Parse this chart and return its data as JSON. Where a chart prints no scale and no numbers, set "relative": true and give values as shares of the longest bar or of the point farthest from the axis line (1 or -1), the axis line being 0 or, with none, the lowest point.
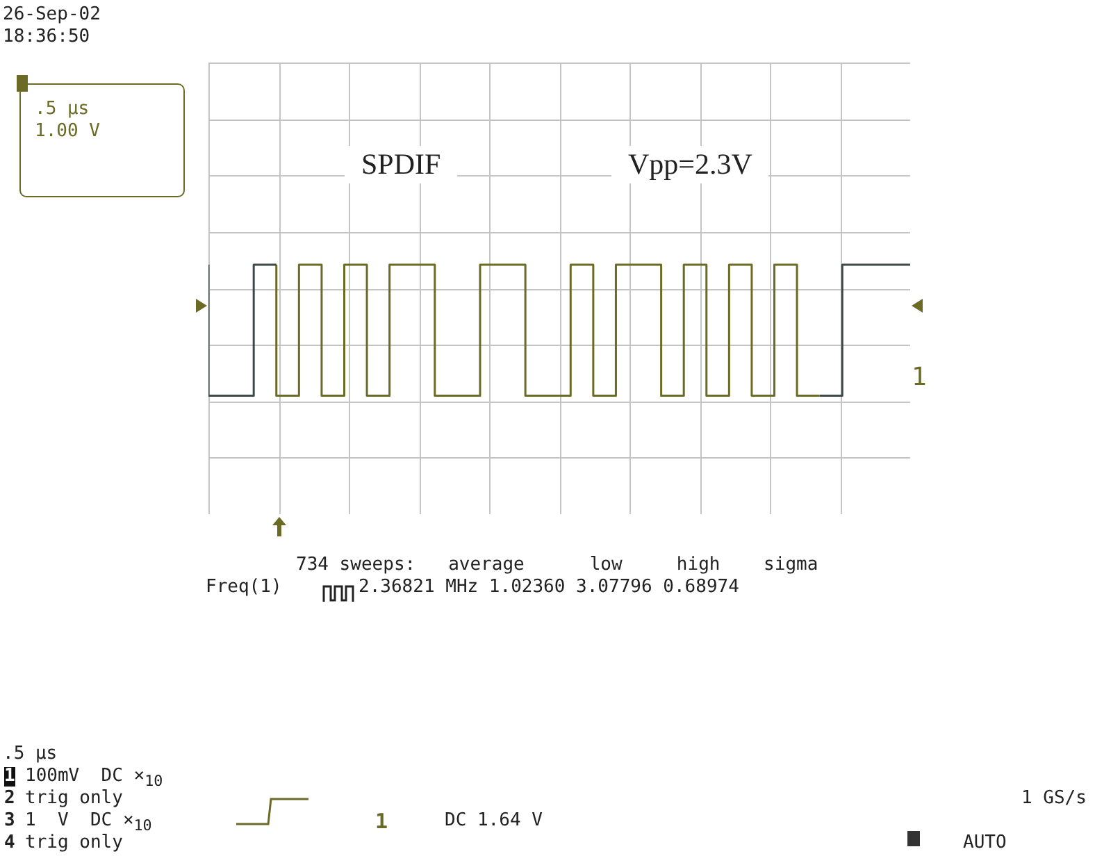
{
  "chart_data": {
    "type": "step",
    "relative": true,
    "grid": true,
    "marker": "none",
    "categories": [
      null,
      null,
      null,
      null,
      null,
      null,
      null,
      null,
      null,
      null,
      null,
      null,
      null,
      null,
      null,
      null,
      null,
      null,
      null,
      null,
      null,
      null,
      null,
      null,
      null,
      null,
      null,
      null,
      null,
      null,
      null,
      null
    ],
    "series": [
      {
        "color": "#3d4848",
        "values": [
          1,
          0,
          0,
          1,
          null,
          null,
          null,
          null,
          null,
          null,
          null,
          null,
          null,
          null,
          null,
          null,
          null,
          null,
          null,
          null,
          null,
          null,
          null,
          null,
          null,
          null,
          null,
          0,
          0,
          1,
          1,
          1
        ]
      },
      {
        "color": "#6b6b26",
        "values": [
          null,
          null,
          null,
          1,
          0,
          1,
          0,
          1,
          0,
          1,
          1,
          0,
          0,
          1,
          1,
          0,
          0,
          1,
          0,
          1,
          1,
          0,
          1,
          0,
          1,
          0,
          1,
          0,
          null,
          null,
          null,
          null
        ]
      }
    ],
    "annotations": [
      "SPDIF",
      "Vpp=2.3V",
      "26-Sep-02",
      "18:36:50",
      ".5 μs",
      "1.00 V",
      "734 sweeps:   average      low     high    sigma",
      "Freq(1)",
      "2.36821 MHz 1.02360 3.07796 0.68974",
      ".5 μs",
      "100mV  DC ×$_{10}$",
      "trig only",
      "1  V  DC ×$_{10}$",
      "trig only",
      "DC 1.64 V",
      "1 GS/s",
      "AUTO",
      "1",
      "1",
      "2",
      "3",
      "4",
      "1"
    ]
  }
}
